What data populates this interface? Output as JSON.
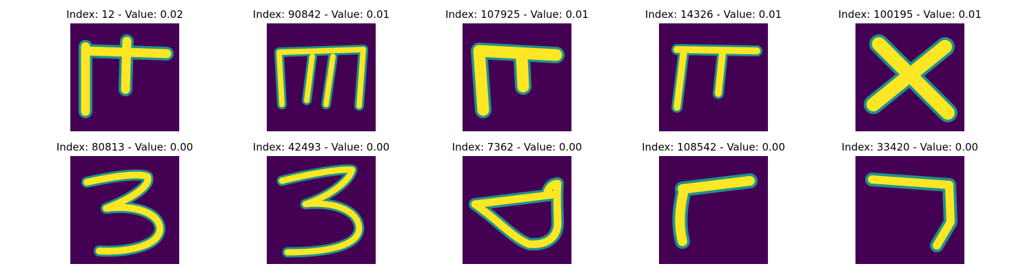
{
  "panels": [
    {
      "title": "Index: 12 - Value: 0.02",
      "glyph": "glyph-12"
    },
    {
      "title": "Index: 90842 - Value: 0.01",
      "glyph": "glyph-90842"
    },
    {
      "title": "Index: 107925 - Value: 0.01",
      "glyph": "glyph-107925"
    },
    {
      "title": "Index: 14326 - Value: 0.01",
      "glyph": "glyph-14326"
    },
    {
      "title": "Index: 100195 - Value: 0.01",
      "glyph": "glyph-100195"
    },
    {
      "title": "Index: 80813 - Value: 0.00",
      "glyph": "glyph-80813"
    },
    {
      "title": "Index: 42493 - Value: 0.00",
      "glyph": "glyph-42493"
    },
    {
      "title": "Index: 7362 - Value: 0.00",
      "glyph": "glyph-7362"
    },
    {
      "title": "Index: 108542 - Value: 0.00",
      "glyph": "glyph-108542"
    },
    {
      "title": "Index: 33420 - Value: 0.00",
      "glyph": "glyph-33420"
    }
  ],
  "colors": {
    "background": "#440154",
    "stroke_edge": "#21918c",
    "stroke_core": "#fde725"
  }
}
